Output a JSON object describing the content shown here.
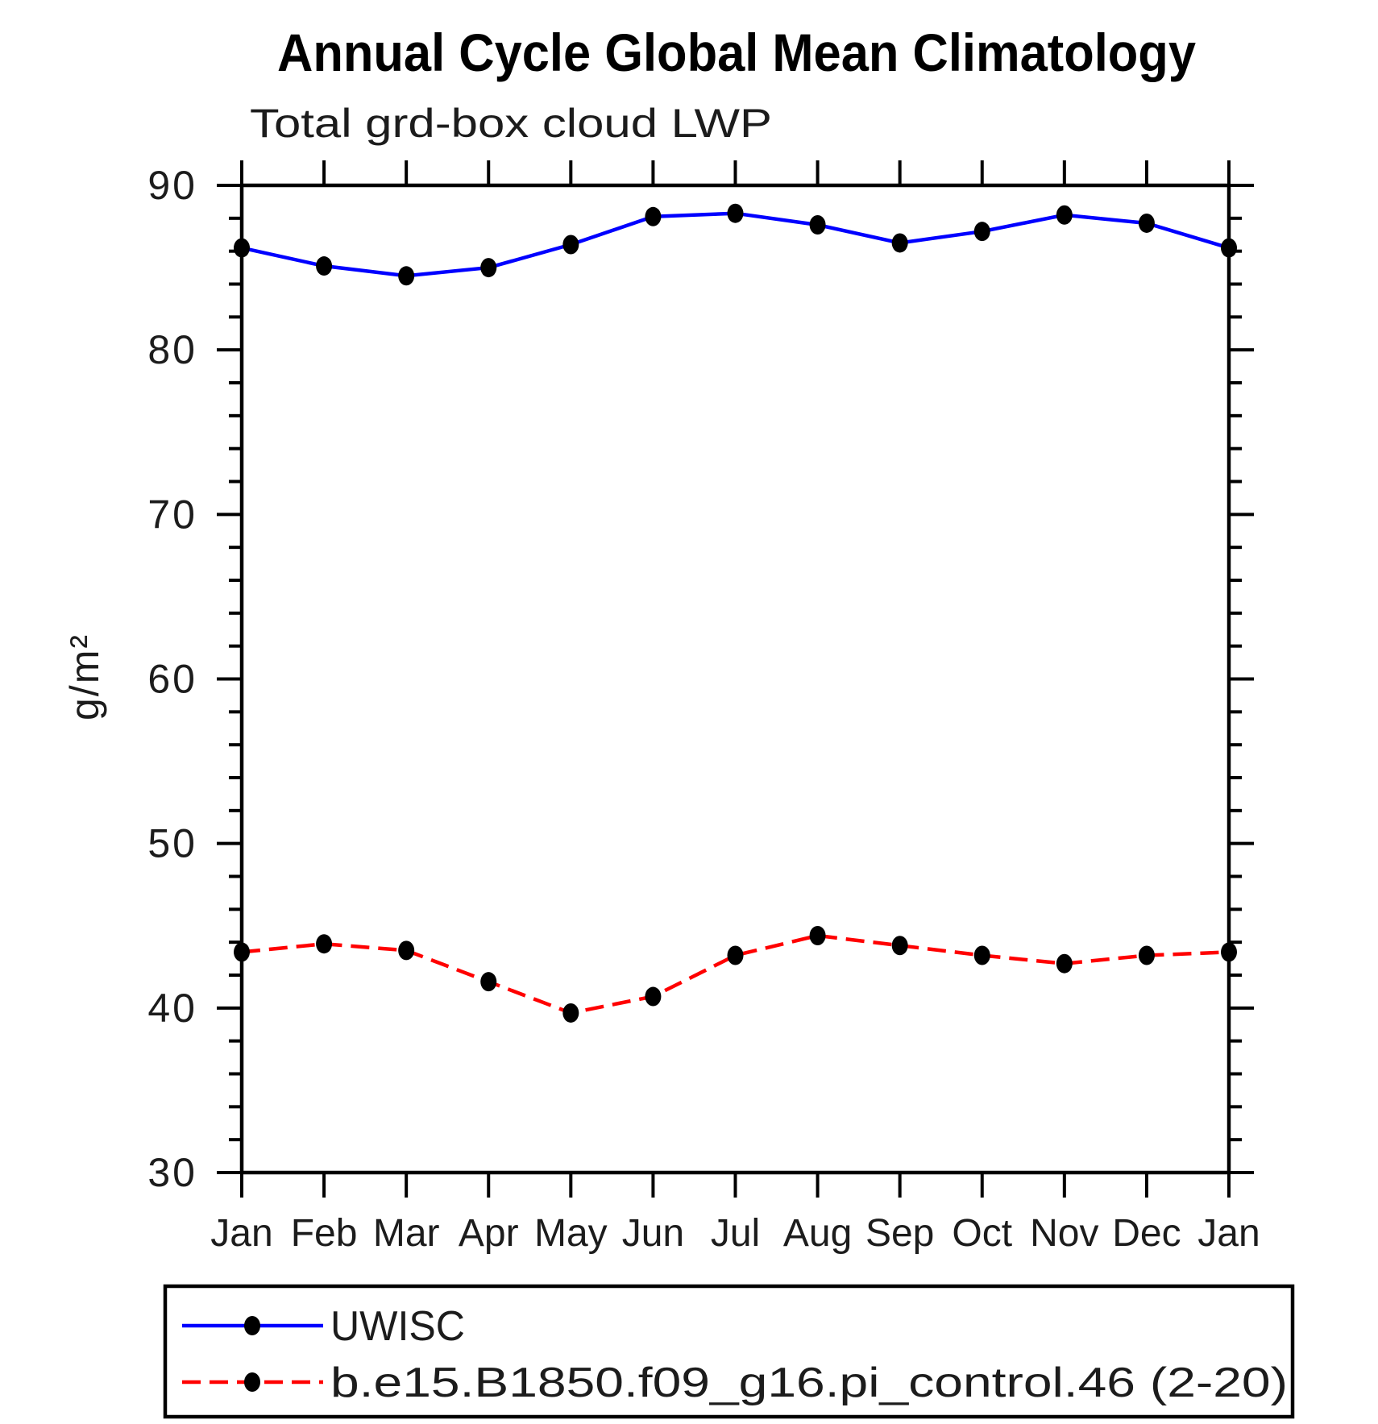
{
  "chart_data": {
    "type": "line",
    "title": "Annual Cycle Global Mean Climatology",
    "subtitle": "Total grd-box cloud LWP",
    "ylabel": "g/m²",
    "xlabel": "",
    "categories": [
      "Jan",
      "Feb",
      "Mar",
      "Apr",
      "May",
      "Jun",
      "Jul",
      "Aug",
      "Sep",
      "Oct",
      "Nov",
      "Dec",
      "Jan"
    ],
    "ylim": [
      30,
      90
    ],
    "ytick_major_interval": 10,
    "ytick_minor_interval": 2,
    "ytick_major_labels": [
      "30",
      "40",
      "50",
      "60",
      "70",
      "80",
      "90"
    ],
    "grid": false,
    "axis_color": "#000000",
    "marker_color": "#000000",
    "legend_position": "bottom-box",
    "series": [
      {
        "name": "UWISC",
        "color": "#0000ff",
        "line_style": "solid",
        "marker": "filled-circle",
        "values": [
          86.2,
          85.1,
          84.5,
          85.0,
          86.4,
          88.1,
          88.3,
          87.6,
          86.5,
          87.2,
          88.2,
          87.7,
          86.2
        ]
      },
      {
        "name": "b.e15.B1850.f09_g16.pi_control.46 (2-20)",
        "color": "#ff0000",
        "line_style": "dashed",
        "marker": "filled-circle",
        "values": [
          43.4,
          43.9,
          43.5,
          41.6,
          39.7,
          40.7,
          43.2,
          44.4,
          43.8,
          43.2,
          42.7,
          43.2,
          43.4
        ]
      }
    ]
  }
}
